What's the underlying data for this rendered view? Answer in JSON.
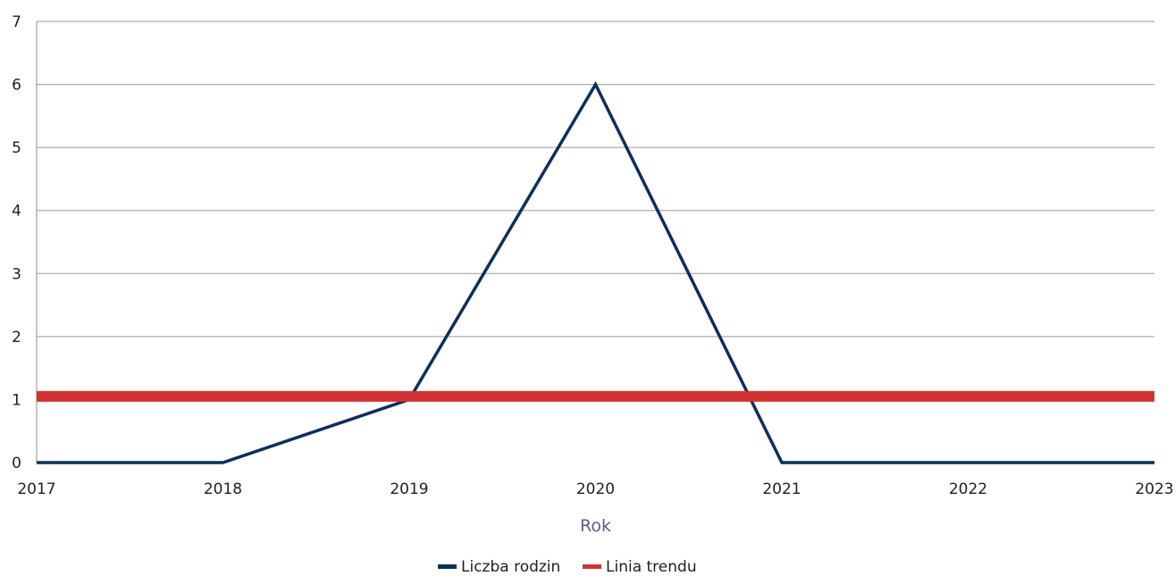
{
  "chart_data": {
    "type": "line",
    "title": "",
    "xlabel": "Rok",
    "ylabel": "",
    "x": [
      2017,
      2018,
      2019,
      2020,
      2021,
      2022,
      2023
    ],
    "xlim": [
      2017,
      2023
    ],
    "ylim": [
      0,
      7
    ],
    "yticks": [
      0,
      1,
      2,
      3,
      4,
      5,
      6,
      7
    ],
    "grid": true,
    "legend_position": "bottom",
    "series": [
      {
        "name": "Liczba rodzin",
        "color": "#0d2f5c",
        "values": [
          0,
          0,
          1,
          6,
          0,
          0,
          0
        ]
      },
      {
        "name": "Linia trendu",
        "color": "#d23232",
        "values": [
          1.05,
          1.05,
          1.05,
          1.05,
          1.05,
          1.05,
          1.05
        ]
      }
    ]
  }
}
